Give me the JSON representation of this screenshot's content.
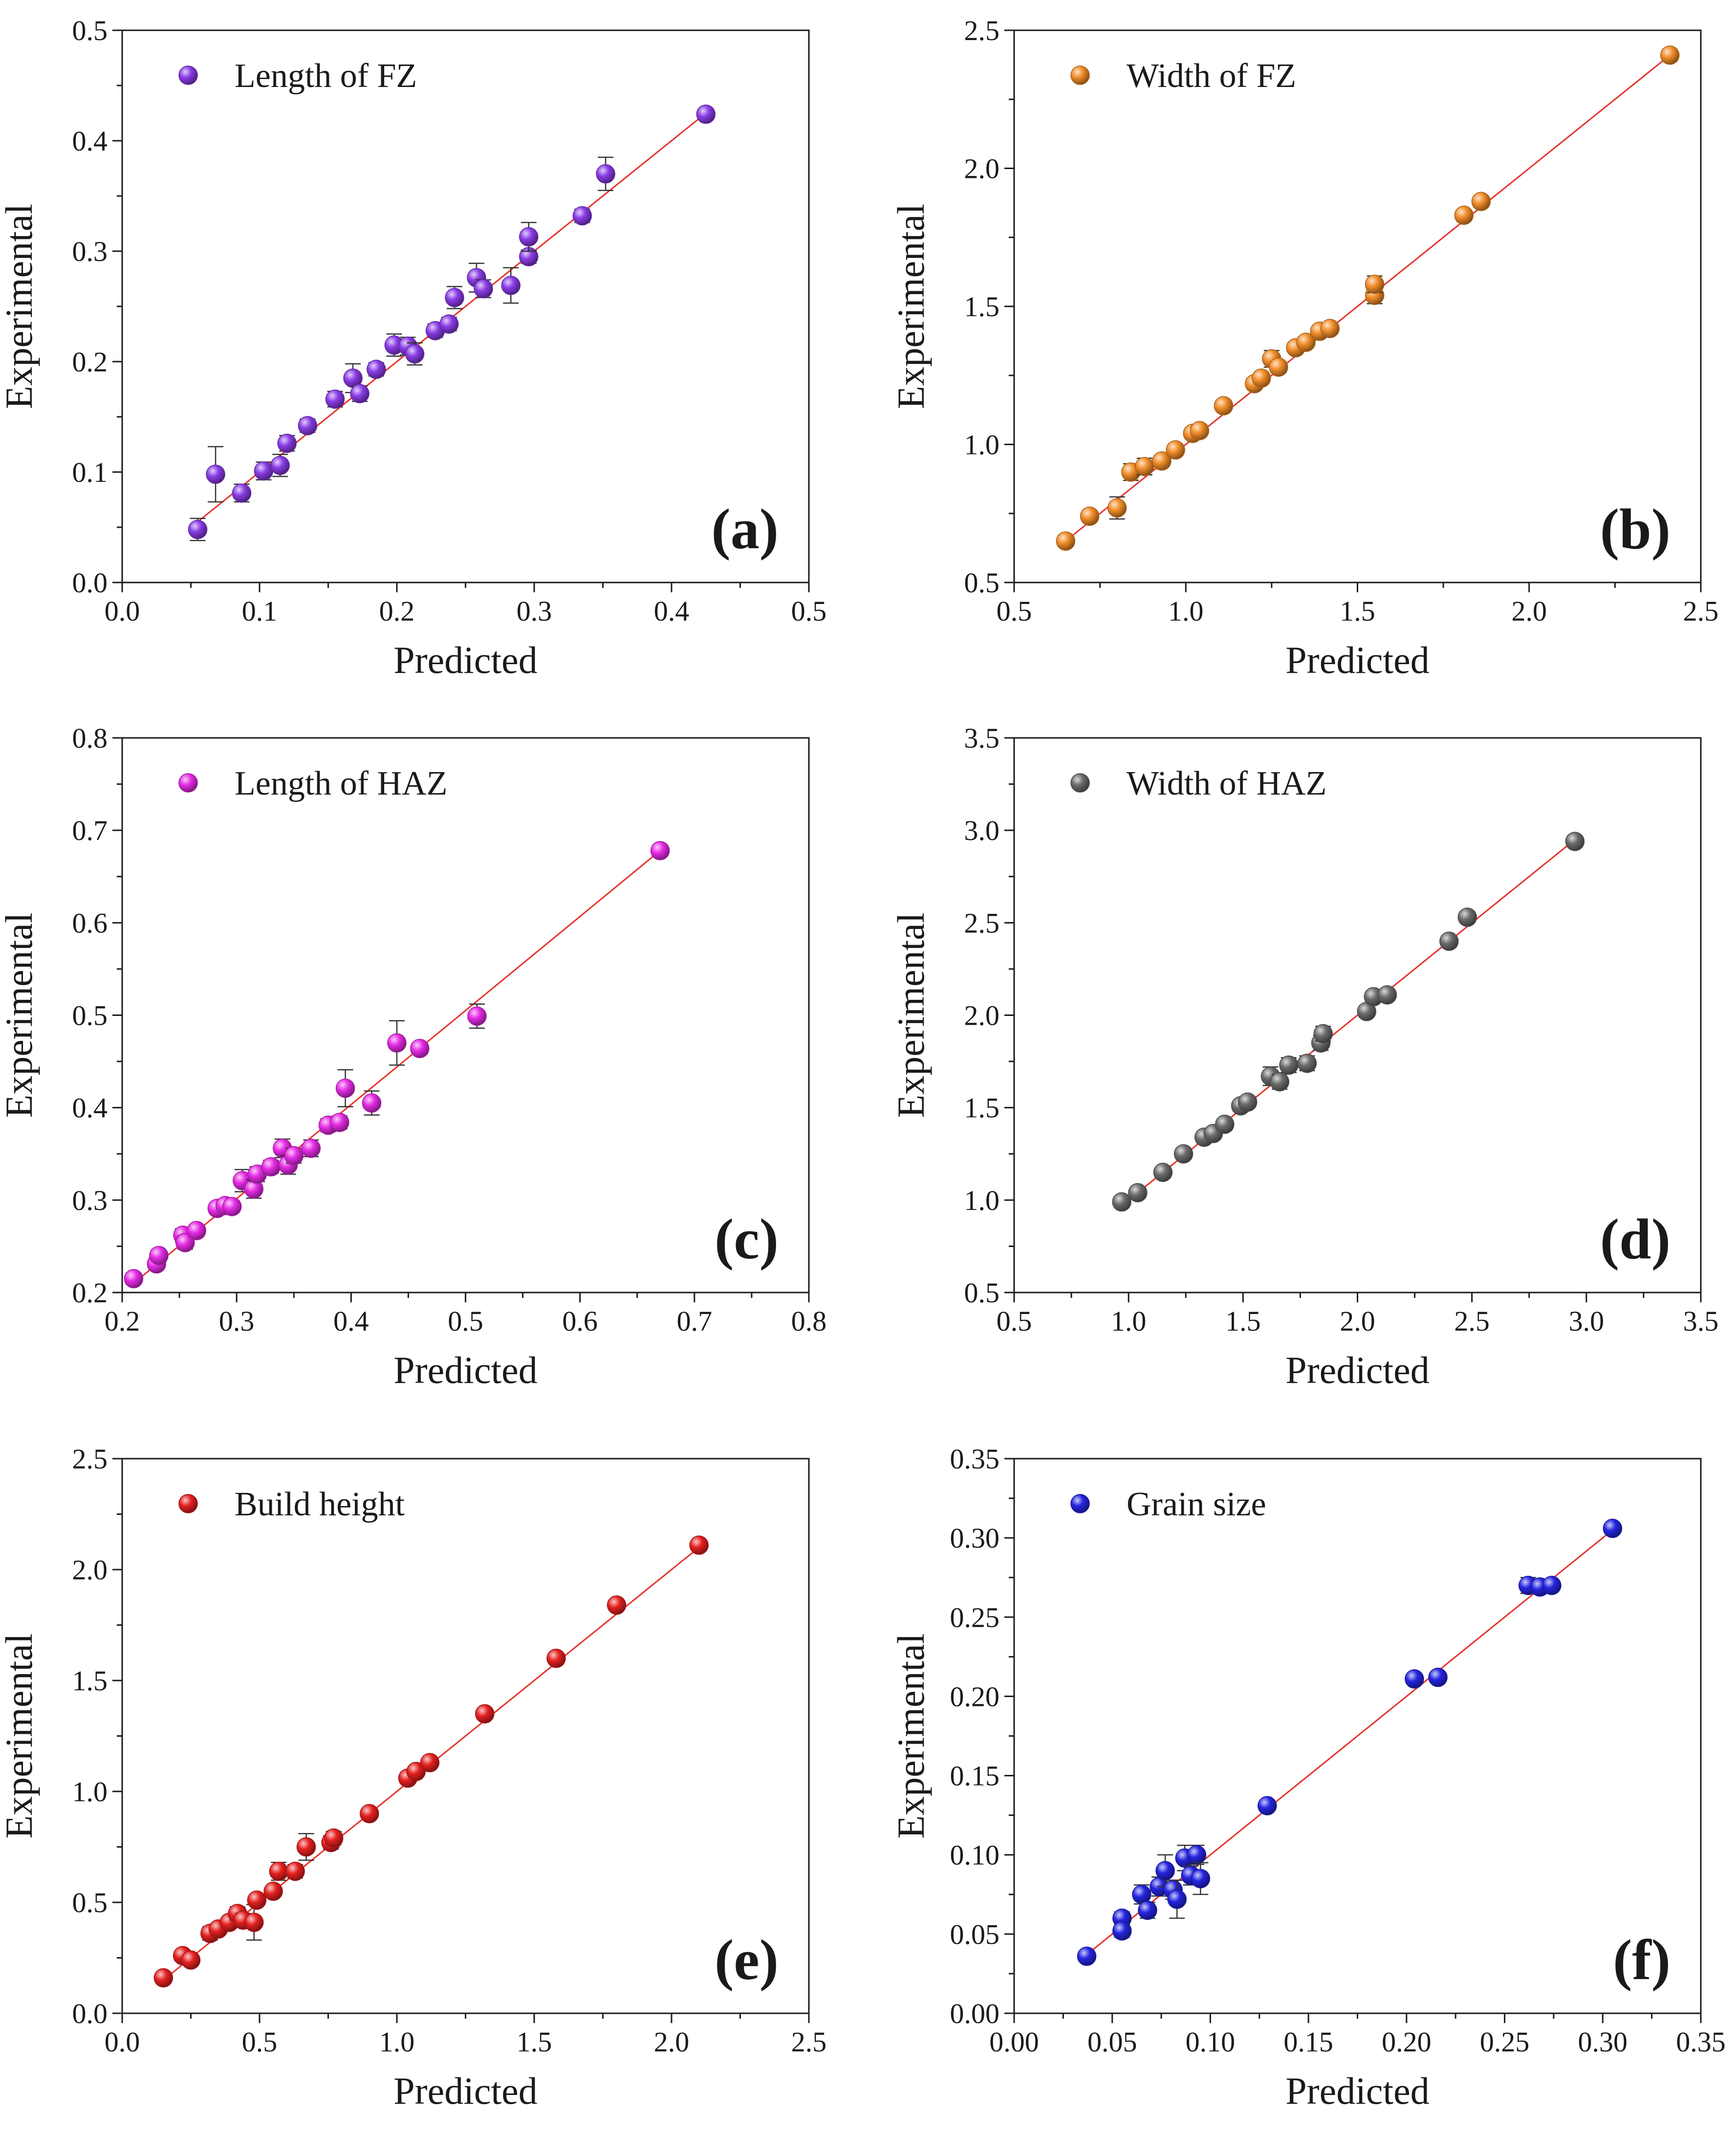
{
  "chart_data": [
    {
      "panel": "(a)",
      "type": "scatter",
      "title": "",
      "xlabel": "Predicted",
      "ylabel": "Experimental",
      "legend": "Length of FZ",
      "legend_position": "top-left",
      "color": "#8a3ce6",
      "xlim": [
        0.0,
        0.5
      ],
      "ylim": [
        0.0,
        0.5
      ],
      "xticks": [
        "0.0",
        "0.1",
        "0.2",
        "0.3",
        "0.4",
        "0.5"
      ],
      "yticks": [
        "0.0",
        "0.1",
        "0.2",
        "0.3",
        "0.4",
        "0.5"
      ],
      "fit_line": [
        [
          0.05,
          0.05
        ],
        [
          0.425,
          0.425
        ]
      ],
      "points": [
        {
          "x": 0.055,
          "y": 0.048,
          "err": 0.01
        },
        {
          "x": 0.068,
          "y": 0.098,
          "err": 0.025
        },
        {
          "x": 0.087,
          "y": 0.081,
          "err": 0.008
        },
        {
          "x": 0.103,
          "y": 0.101,
          "err": 0.008
        },
        {
          "x": 0.115,
          "y": 0.106,
          "err": 0.01
        },
        {
          "x": 0.12,
          "y": 0.126,
          "err": 0.007
        },
        {
          "x": 0.135,
          "y": 0.142,
          "err": 0.006
        },
        {
          "x": 0.155,
          "y": 0.166,
          "err": 0.007
        },
        {
          "x": 0.168,
          "y": 0.185,
          "err": 0.013
        },
        {
          "x": 0.173,
          "y": 0.171,
          "err": 0.007
        },
        {
          "x": 0.185,
          "y": 0.193,
          "err": 0.006
        },
        {
          "x": 0.198,
          "y": 0.215,
          "err": 0.01
        },
        {
          "x": 0.208,
          "y": 0.214,
          "err": 0.008
        },
        {
          "x": 0.213,
          "y": 0.207,
          "err": 0.01
        },
        {
          "x": 0.228,
          "y": 0.228,
          "err": 0.006
        },
        {
          "x": 0.238,
          "y": 0.234,
          "err": 0.006
        },
        {
          "x": 0.242,
          "y": 0.258,
          "err": 0.01
        },
        {
          "x": 0.258,
          "y": 0.276,
          "err": 0.013
        },
        {
          "x": 0.263,
          "y": 0.266,
          "err": 0.008
        },
        {
          "x": 0.283,
          "y": 0.269,
          "err": 0.016
        },
        {
          "x": 0.296,
          "y": 0.295,
          "err": 0.006
        },
        {
          "x": 0.296,
          "y": 0.313,
          "err": 0.013
        },
        {
          "x": 0.335,
          "y": 0.332,
          "err": 0.006
        },
        {
          "x": 0.352,
          "y": 0.37,
          "err": 0.015
        },
        {
          "x": 0.425,
          "y": 0.424,
          "err": 0.005
        }
      ]
    },
    {
      "panel": "(b)",
      "type": "scatter",
      "title": "",
      "xlabel": "Predicted",
      "ylabel": "Experimental",
      "legend": "Width of FZ",
      "legend_position": "top-left",
      "color": "#f28c28",
      "xlim": [
        0.5,
        2.5
      ],
      "ylim": [
        0.5,
        2.5
      ],
      "xticks": [
        "0.5",
        "1.0",
        "1.5",
        "2.0",
        "2.5"
      ],
      "yticks": [
        "0.5",
        "1.0",
        "1.5",
        "2.0",
        "2.5"
      ],
      "fit_line": [
        [
          0.65,
          0.65
        ],
        [
          2.41,
          2.41
        ]
      ],
      "points": [
        {
          "x": 0.65,
          "y": 0.65,
          "err": 0.02
        },
        {
          "x": 0.72,
          "y": 0.74,
          "err": 0.02
        },
        {
          "x": 0.8,
          "y": 0.77,
          "err": 0.04
        },
        {
          "x": 0.84,
          "y": 0.9,
          "err": 0.03
        },
        {
          "x": 0.88,
          "y": 0.92,
          "err": 0.03
        },
        {
          "x": 0.93,
          "y": 0.94,
          "err": 0.02
        },
        {
          "x": 0.97,
          "y": 0.98,
          "err": 0.02
        },
        {
          "x": 1.02,
          "y": 1.04,
          "err": 0.02
        },
        {
          "x": 1.04,
          "y": 1.05,
          "err": 0.02
        },
        {
          "x": 1.11,
          "y": 1.14,
          "err": 0.02
        },
        {
          "x": 1.2,
          "y": 1.22,
          "err": 0.02
        },
        {
          "x": 1.22,
          "y": 1.24,
          "err": 0.02
        },
        {
          "x": 1.25,
          "y": 1.31,
          "err": 0.03
        },
        {
          "x": 1.27,
          "y": 1.28,
          "err": 0.02
        },
        {
          "x": 1.32,
          "y": 1.35,
          "err": 0.02
        },
        {
          "x": 1.35,
          "y": 1.37,
          "err": 0.02
        },
        {
          "x": 1.39,
          "y": 1.41,
          "err": 0.02
        },
        {
          "x": 1.42,
          "y": 1.42,
          "err": 0.02
        },
        {
          "x": 1.55,
          "y": 1.54,
          "err": 0.03
        },
        {
          "x": 1.55,
          "y": 1.58,
          "err": 0.03
        },
        {
          "x": 1.81,
          "y": 1.83,
          "err": 0.02
        },
        {
          "x": 1.86,
          "y": 1.88,
          "err": 0.02
        },
        {
          "x": 2.41,
          "y": 2.41,
          "err": 0.02
        }
      ]
    },
    {
      "panel": "(c)",
      "type": "scatter",
      "title": "",
      "xlabel": "Predicted",
      "ylabel": "Experimental",
      "legend": "Length of HAZ",
      "legend_position": "top-left",
      "color": "#e62be6",
      "xlim": [
        0.2,
        0.8
      ],
      "ylim": [
        0.2,
        0.8
      ],
      "xticks": [
        "0.2",
        "0.3",
        "0.4",
        "0.5",
        "0.6",
        "0.7",
        "0.8"
      ],
      "yticks": [
        "0.2",
        "0.3",
        "0.4",
        "0.5",
        "0.6",
        "0.7",
        "0.8"
      ],
      "fit_line": [
        [
          0.21,
          0.21
        ],
        [
          0.67,
          0.678
        ]
      ],
      "points": [
        {
          "x": 0.21,
          "y": 0.215,
          "err": 0.006
        },
        {
          "x": 0.23,
          "y": 0.231,
          "err": 0.006
        },
        {
          "x": 0.232,
          "y": 0.24,
          "err": 0.006
        },
        {
          "x": 0.253,
          "y": 0.262,
          "err": 0.007
        },
        {
          "x": 0.255,
          "y": 0.254,
          "err": 0.007
        },
        {
          "x": 0.265,
          "y": 0.267,
          "err": 0.006
        },
        {
          "x": 0.283,
          "y": 0.291,
          "err": 0.006
        },
        {
          "x": 0.29,
          "y": 0.294,
          "err": 0.006
        },
        {
          "x": 0.296,
          "y": 0.293,
          "err": 0.006
        },
        {
          "x": 0.305,
          "y": 0.321,
          "err": 0.012
        },
        {
          "x": 0.315,
          "y": 0.312,
          "err": 0.01
        },
        {
          "x": 0.318,
          "y": 0.328,
          "err": 0.008
        },
        {
          "x": 0.33,
          "y": 0.336,
          "err": 0.007
        },
        {
          "x": 0.34,
          "y": 0.356,
          "err": 0.01
        },
        {
          "x": 0.345,
          "y": 0.338,
          "err": 0.01
        },
        {
          "x": 0.35,
          "y": 0.348,
          "err": 0.008
        },
        {
          "x": 0.365,
          "y": 0.356,
          "err": 0.009
        },
        {
          "x": 0.38,
          "y": 0.381,
          "err": 0.007
        },
        {
          "x": 0.39,
          "y": 0.384,
          "err": 0.007
        },
        {
          "x": 0.395,
          "y": 0.421,
          "err": 0.02
        },
        {
          "x": 0.418,
          "y": 0.405,
          "err": 0.013
        },
        {
          "x": 0.44,
          "y": 0.47,
          "err": 0.024
        },
        {
          "x": 0.46,
          "y": 0.464,
          "err": 0.006
        },
        {
          "x": 0.51,
          "y": 0.499,
          "err": 0.013
        },
        {
          "x": 0.67,
          "y": 0.678,
          "err": 0.006
        }
      ]
    },
    {
      "panel": "(d)",
      "type": "scatter",
      "title": "",
      "xlabel": "Predicted",
      "ylabel": "Experimental",
      "legend": "Width of HAZ",
      "legend_position": "top-left",
      "color": "#6b6b6b",
      "xlim": [
        0.5,
        3.5
      ],
      "ylim": [
        0.5,
        3.5
      ],
      "xticks": [
        "0.5",
        "1.0",
        "1.5",
        "2.0",
        "2.5",
        "3.0",
        "3.5"
      ],
      "yticks": [
        "0.5",
        "1.0",
        "1.5",
        "2.0",
        "2.5",
        "3.0",
        "3.5"
      ],
      "fit_line": [
        [
          0.97,
          0.97
        ],
        [
          2.95,
          2.95
        ]
      ],
      "points": [
        {
          "x": 0.97,
          "y": 0.99,
          "err": 0.03
        },
        {
          "x": 1.04,
          "y": 1.04,
          "err": 0.03
        },
        {
          "x": 1.15,
          "y": 1.15,
          "err": 0.03
        },
        {
          "x": 1.24,
          "y": 1.25,
          "err": 0.03
        },
        {
          "x": 1.33,
          "y": 1.34,
          "err": 0.03
        },
        {
          "x": 1.37,
          "y": 1.36,
          "err": 0.03
        },
        {
          "x": 1.42,
          "y": 1.41,
          "err": 0.03
        },
        {
          "x": 1.49,
          "y": 1.51,
          "err": 0.03
        },
        {
          "x": 1.52,
          "y": 1.53,
          "err": 0.03
        },
        {
          "x": 1.62,
          "y": 1.67,
          "err": 0.05
        },
        {
          "x": 1.66,
          "y": 1.64,
          "err": 0.04
        },
        {
          "x": 1.7,
          "y": 1.73,
          "err": 0.04
        },
        {
          "x": 1.78,
          "y": 1.74,
          "err": 0.04
        },
        {
          "x": 1.84,
          "y": 1.85,
          "err": 0.04
        },
        {
          "x": 1.85,
          "y": 1.9,
          "err": 0.04
        },
        {
          "x": 2.04,
          "y": 2.02,
          "err": 0.03
        },
        {
          "x": 2.07,
          "y": 2.1,
          "err": 0.03
        },
        {
          "x": 2.13,
          "y": 2.11,
          "err": 0.03
        },
        {
          "x": 2.4,
          "y": 2.4,
          "err": 0.03
        },
        {
          "x": 2.48,
          "y": 2.53,
          "err": 0.03
        },
        {
          "x": 2.95,
          "y": 2.94,
          "err": 0.03
        }
      ]
    },
    {
      "panel": "(e)",
      "type": "scatter",
      "title": "",
      "xlabel": "Predicted",
      "ylabel": "Experimental",
      "legend": "Build height",
      "legend_position": "top-left",
      "color": "#e62020",
      "xlim": [
        0.0,
        2.5
      ],
      "ylim": [
        0.0,
        2.5
      ],
      "xticks": [
        "0.0",
        "0.5",
        "1.0",
        "1.5",
        "2.0",
        "2.5"
      ],
      "yticks": [
        "0.0",
        "0.5",
        "1.0",
        "1.5",
        "2.0",
        "2.5"
      ],
      "fit_line": [
        [
          0.15,
          0.15
        ],
        [
          2.1,
          2.1
        ]
      ],
      "points": [
        {
          "x": 0.15,
          "y": 0.16,
          "err": 0.02
        },
        {
          "x": 0.22,
          "y": 0.26,
          "err": 0.02
        },
        {
          "x": 0.25,
          "y": 0.24,
          "err": 0.02
        },
        {
          "x": 0.32,
          "y": 0.36,
          "err": 0.03
        },
        {
          "x": 0.35,
          "y": 0.38,
          "err": 0.02
        },
        {
          "x": 0.39,
          "y": 0.41,
          "err": 0.02
        },
        {
          "x": 0.42,
          "y": 0.45,
          "err": 0.03
        },
        {
          "x": 0.44,
          "y": 0.42,
          "err": 0.03
        },
        {
          "x": 0.48,
          "y": 0.41,
          "err": 0.08
        },
        {
          "x": 0.49,
          "y": 0.51,
          "err": 0.02
        },
        {
          "x": 0.55,
          "y": 0.55,
          "err": 0.02
        },
        {
          "x": 0.57,
          "y": 0.64,
          "err": 0.04
        },
        {
          "x": 0.63,
          "y": 0.64,
          "err": 0.03
        },
        {
          "x": 0.67,
          "y": 0.75,
          "err": 0.06
        },
        {
          "x": 0.76,
          "y": 0.77,
          "err": 0.03
        },
        {
          "x": 0.77,
          "y": 0.79,
          "err": 0.03
        },
        {
          "x": 0.9,
          "y": 0.9,
          "err": 0.02
        },
        {
          "x": 1.04,
          "y": 1.06,
          "err": 0.02
        },
        {
          "x": 1.07,
          "y": 1.09,
          "err": 0.02
        },
        {
          "x": 1.12,
          "y": 1.13,
          "err": 0.02
        },
        {
          "x": 1.32,
          "y": 1.35,
          "err": 0.02
        },
        {
          "x": 1.58,
          "y": 1.6,
          "err": 0.02
        },
        {
          "x": 1.8,
          "y": 1.84,
          "err": 0.02
        },
        {
          "x": 2.1,
          "y": 2.11,
          "err": 0.02
        }
      ]
    },
    {
      "panel": "(f)",
      "type": "scatter",
      "title": "",
      "xlabel": "Predicted",
      "ylabel": "Experimental",
      "legend": "Grain size",
      "legend_position": "top-left",
      "color": "#2525e0",
      "xlim": [
        0.0,
        0.35
      ],
      "ylim": [
        0.0,
        0.35
      ],
      "xticks": [
        "0.00",
        "0.05",
        "0.10",
        "0.15",
        "0.20",
        "0.25",
        "0.30",
        "0.35"
      ],
      "yticks": [
        "0.00",
        "0.05",
        "0.10",
        "0.15",
        "0.20",
        "0.25",
        "0.30",
        "0.35"
      ],
      "fit_line": [
        [
          0.037,
          0.037
        ],
        [
          0.305,
          0.305
        ]
      ],
      "points": [
        {
          "x": 0.037,
          "y": 0.036,
          "err": 0.003
        },
        {
          "x": 0.055,
          "y": 0.06,
          "err": 0.004
        },
        {
          "x": 0.055,
          "y": 0.052,
          "err": 0.004
        },
        {
          "x": 0.065,
          "y": 0.075,
          "err": 0.006
        },
        {
          "x": 0.068,
          "y": 0.065,
          "err": 0.005
        },
        {
          "x": 0.074,
          "y": 0.08,
          "err": 0.006
        },
        {
          "x": 0.077,
          "y": 0.09,
          "err": 0.01
        },
        {
          "x": 0.081,
          "y": 0.078,
          "err": 0.006
        },
        {
          "x": 0.083,
          "y": 0.072,
          "err": 0.012
        },
        {
          "x": 0.087,
          "y": 0.098,
          "err": 0.008
        },
        {
          "x": 0.09,
          "y": 0.087,
          "err": 0.006
        },
        {
          "x": 0.093,
          "y": 0.1,
          "err": 0.006
        },
        {
          "x": 0.095,
          "y": 0.085,
          "err": 0.01
        },
        {
          "x": 0.129,
          "y": 0.131,
          "err": 0.003
        },
        {
          "x": 0.204,
          "y": 0.211,
          "err": 0.003
        },
        {
          "x": 0.216,
          "y": 0.212,
          "err": 0.003
        },
        {
          "x": 0.262,
          "y": 0.27,
          "err": 0.005
        },
        {
          "x": 0.268,
          "y": 0.269,
          "err": 0.004
        },
        {
          "x": 0.274,
          "y": 0.27,
          "err": 0.003
        },
        {
          "x": 0.305,
          "y": 0.306,
          "err": 0.003
        }
      ]
    }
  ]
}
